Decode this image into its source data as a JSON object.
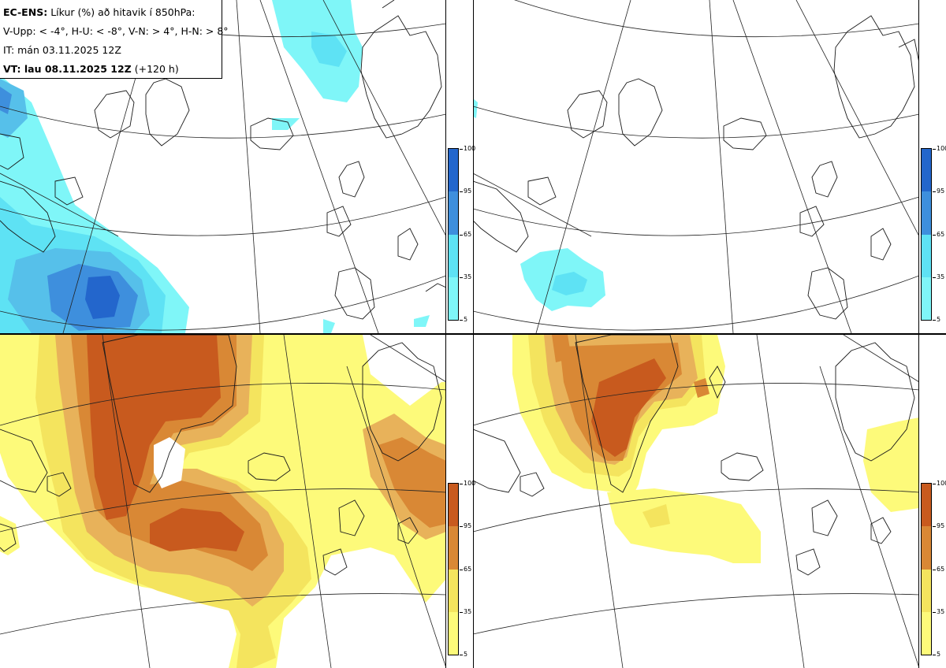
{
  "legend": {
    "model": "EC-ENS:",
    "title": "Líkur (%) að hitavik í 850hPa:",
    "thresholds": "V-Upp: < -4°, H-U: < -8°, V-N: > 4°, H-N: > 8°",
    "initial_time": "IT: mán 03.11.2025 12Z",
    "valid_prefix": "VT: lau 08.11.2025 12Z",
    "lead_time": "(+120 h)"
  },
  "colorbar_ticks": [
    "100",
    "95",
    "65",
    "35",
    "5"
  ],
  "colors": {
    "cold": [
      "#7ff6f8",
      "#5ee2f4",
      "#56c0ea",
      "#3e8fdd",
      "#2366cc"
    ],
    "warm": [
      "#fdfa7a",
      "#f4e45e",
      "#e8b25a",
      "#d98835",
      "#c85a1e"
    ],
    "coast": "#1a1a1a",
    "grid": "#222222"
  },
  "panels": [
    {
      "id": "top-left",
      "field": "cold anomaly < -4°"
    },
    {
      "id": "top-right",
      "field": "cold anomaly < -8°"
    },
    {
      "id": "bottom-left",
      "field": "warm anomaly > 4°"
    },
    {
      "id": "bottom-right",
      "field": "warm anomaly > 8°"
    }
  ]
}
